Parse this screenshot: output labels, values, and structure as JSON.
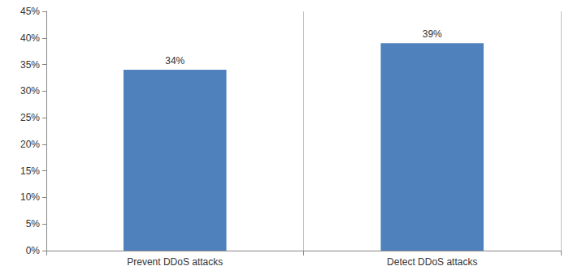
{
  "chart_data": {
    "type": "bar",
    "categories": [
      "Prevent DDoS attacks",
      "Detect DDoS attacks"
    ],
    "values": [
      34,
      39
    ],
    "value_labels": [
      "34%",
      "39%"
    ],
    "data_labels": true,
    "color": "#4f81bd",
    "ylim": [
      0,
      45
    ],
    "yticks": [
      {
        "value": 0,
        "label": "0%"
      },
      {
        "value": 5,
        "label": "5%"
      },
      {
        "value": 10,
        "label": "10%"
      },
      {
        "value": 15,
        "label": "15%"
      },
      {
        "value": 20,
        "label": "20%"
      },
      {
        "value": 25,
        "label": "25%"
      },
      {
        "value": 30,
        "label": "30%"
      },
      {
        "value": 35,
        "label": "35%"
      },
      {
        "value": 40,
        "label": "40%"
      },
      {
        "value": 45,
        "label": "45%"
      }
    ],
    "grid": false
  }
}
